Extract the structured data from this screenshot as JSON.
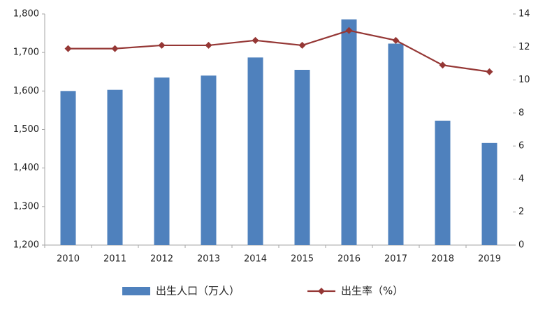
{
  "chart_data": {
    "type": "bar_line",
    "categories": [
      "2010",
      "2011",
      "2012",
      "2013",
      "2014",
      "2015",
      "2016",
      "2017",
      "2018",
      "2019"
    ],
    "series": [
      {
        "name": "出生人口（万人）",
        "color": "#4f81bd",
        "values": [
          1600,
          1603,
          1635,
          1640,
          1687,
          1655,
          1786,
          1723,
          1523,
          1465
        ]
      },
      {
        "name": "出生率（%）",
        "color": "#953735",
        "axis": "y2",
        "values": [
          11.9,
          11.9,
          12.1,
          12.1,
          12.4,
          12.1,
          13.0,
          12.4,
          10.9,
          10.5
        ]
      }
    ],
    "ylim": [
      1200,
      1800
    ],
    "yticks": [
      {
        "value": 1200,
        "label": "1,200"
      },
      {
        "value": 1300,
        "label": "1,300"
      },
      {
        "value": 1400,
        "label": "1,400"
      },
      {
        "value": 1500,
        "label": "1,500"
      },
      {
        "value": 1600,
        "label": "1,600"
      },
      {
        "value": 1700,
        "label": "1,700"
      },
      {
        "value": 1800,
        "label": "1,800"
      }
    ],
    "y2lim": [
      0,
      14
    ],
    "y2ticks": [
      0,
      2,
      4,
      6,
      8,
      10,
      12,
      14
    ],
    "grid": false,
    "legend": "bottom"
  }
}
